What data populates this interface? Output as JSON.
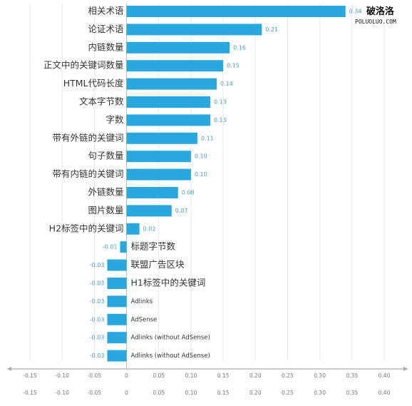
{
  "watermark": {
    "name": "破洛洛",
    "site": "POLUOLUO.COM"
  },
  "chart_data": {
    "type": "bar",
    "orientation": "horizontal",
    "title": "",
    "xlabel": "",
    "ylabel": "",
    "xlim": [
      -0.15,
      0.4
    ],
    "xticks": [
      -0.15,
      -0.1,
      -0.05,
      0,
      0.05,
      0.1,
      0.15,
      0.2,
      0.25,
      0.3,
      0.35,
      0.4
    ],
    "tick_labels": [
      "-0.15",
      "-0.10",
      "-0.05",
      "0",
      "0.05",
      "0.10",
      "0.15",
      "0.20",
      "0.25",
      "0.30",
      "0.35",
      "0.40"
    ],
    "grid": true,
    "categories": [
      "相关术语",
      "论证术语",
      "内链数量",
      "正文中的关键词数量",
      "HTML代码长度",
      "文本字节数",
      "字数",
      "带有外链的关键词",
      "句子数量",
      "带有内链的关键词",
      "外链数量",
      "图片数量",
      "H2标签中的关键词",
      "标题字节数",
      "联盟广告区块",
      "H1标签中的关键词",
      "Adlinks",
      "AdSense",
      "Adlinks (without AdSense)",
      "Adlinks (without AdSense)"
    ],
    "values": [
      0.34,
      0.21,
      0.16,
      0.15,
      0.14,
      0.13,
      0.13,
      0.11,
      0.1,
      0.1,
      0.08,
      0.07,
      0.02,
      -0.01,
      -0.03,
      -0.03,
      -0.03,
      -0.03,
      -0.03,
      -0.03
    ],
    "value_labels": [
      "0.34",
      "0.21",
      "0.16",
      "0.15",
      "0.14",
      "0.13",
      "0.13",
      "0.11",
      "0.10",
      "0.10",
      "0.08",
      "0.07",
      "0.02",
      "-0.01",
      "-0.03",
      "-0.03",
      "-0.03",
      "-0.03",
      "-0.03",
      "-0.03"
    ],
    "colors": {
      "bar": "#28a8df",
      "value_label": "#4a96c8",
      "grid": "#e6e6e6"
    }
  }
}
